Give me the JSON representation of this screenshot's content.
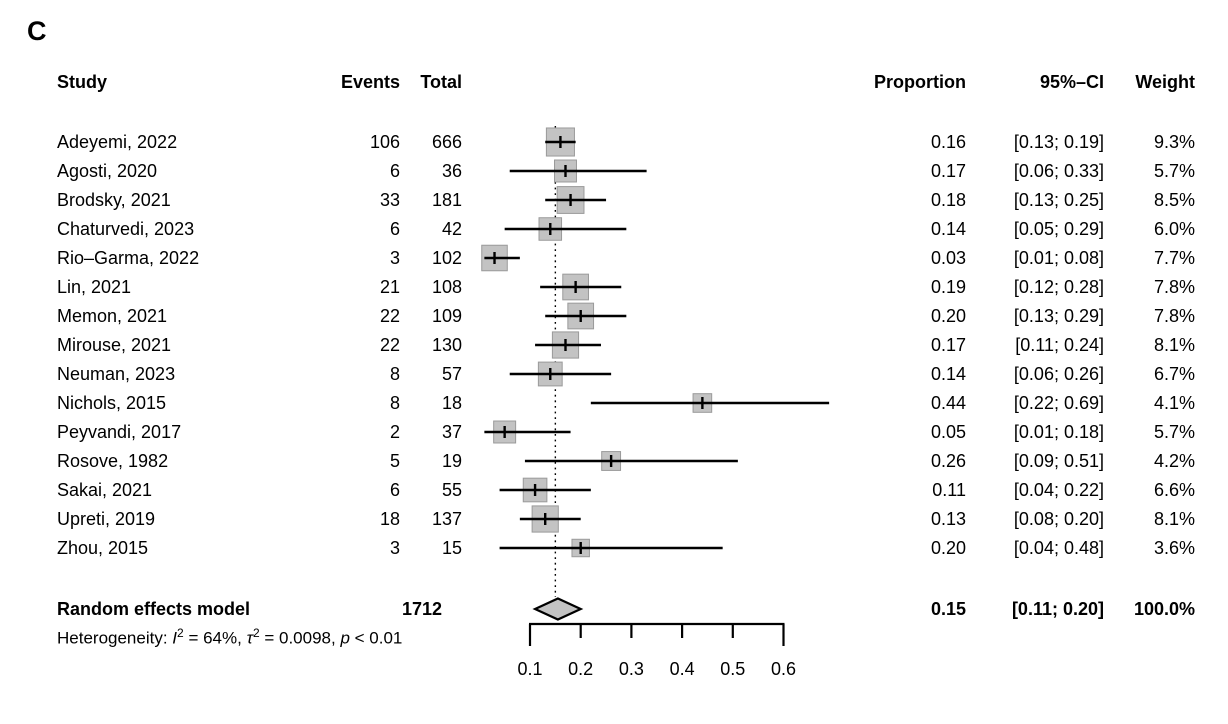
{
  "chart_data": {
    "type": "forest",
    "panel_label": "C",
    "headers": {
      "study": "Study",
      "events": "Events",
      "total": "Total",
      "proportion": "Proportion",
      "ci": "95%–CI",
      "weight": "Weight"
    },
    "rows": [
      {
        "study": "Adeyemi, 2022",
        "events": "106",
        "total": "666",
        "proportion": "0.16",
        "ci": "[0.13; 0.19]",
        "weight": "9.3%",
        "prop": 0.16,
        "lo": 0.13,
        "hi": 0.19,
        "w": 9.3
      },
      {
        "study": "Agosti, 2020",
        "events": "6",
        "total": "36",
        "proportion": "0.17",
        "ci": "[0.06; 0.33]",
        "weight": "5.7%",
        "prop": 0.17,
        "lo": 0.06,
        "hi": 0.33,
        "w": 5.7
      },
      {
        "study": "Brodsky, 2021",
        "events": "33",
        "total": "181",
        "proportion": "0.18",
        "ci": "[0.13; 0.25]",
        "weight": "8.5%",
        "prop": 0.18,
        "lo": 0.13,
        "hi": 0.25,
        "w": 8.5
      },
      {
        "study": "Chaturvedi, 2023",
        "events": "6",
        "total": "42",
        "proportion": "0.14",
        "ci": "[0.05; 0.29]",
        "weight": "6.0%",
        "prop": 0.14,
        "lo": 0.05,
        "hi": 0.29,
        "w": 6.0
      },
      {
        "study": "Rio–Garma, 2022",
        "events": "3",
        "total": "102",
        "proportion": "0.03",
        "ci": "[0.01; 0.08]",
        "weight": "7.7%",
        "prop": 0.03,
        "lo": 0.01,
        "hi": 0.08,
        "w": 7.7
      },
      {
        "study": "Lin, 2021",
        "events": "21",
        "total": "108",
        "proportion": "0.19",
        "ci": "[0.12; 0.28]",
        "weight": "7.8%",
        "prop": 0.19,
        "lo": 0.12,
        "hi": 0.28,
        "w": 7.8
      },
      {
        "study": "Memon, 2021",
        "events": "22",
        "total": "109",
        "proportion": "0.20",
        "ci": "[0.13; 0.29]",
        "weight": "7.8%",
        "prop": 0.2,
        "lo": 0.13,
        "hi": 0.29,
        "w": 7.8
      },
      {
        "study": "Mirouse, 2021",
        "events": "22",
        "total": "130",
        "proportion": "0.17",
        "ci": "[0.11; 0.24]",
        "weight": "8.1%",
        "prop": 0.17,
        "lo": 0.11,
        "hi": 0.24,
        "w": 8.1
      },
      {
        "study": "Neuman, 2023",
        "events": "8",
        "total": "57",
        "proportion": "0.14",
        "ci": "[0.06; 0.26]",
        "weight": "6.7%",
        "prop": 0.14,
        "lo": 0.06,
        "hi": 0.26,
        "w": 6.7
      },
      {
        "study": "Nichols, 2015",
        "events": "8",
        "total": "18",
        "proportion": "0.44",
        "ci": "[0.22; 0.69]",
        "weight": "4.1%",
        "prop": 0.44,
        "lo": 0.22,
        "hi": 0.69,
        "w": 4.1
      },
      {
        "study": "Peyvandi, 2017",
        "events": "2",
        "total": "37",
        "proportion": "0.05",
        "ci": "[0.01; 0.18]",
        "weight": "5.7%",
        "prop": 0.05,
        "lo": 0.01,
        "hi": 0.18,
        "w": 5.7
      },
      {
        "study": "Rosove, 1982",
        "events": "5",
        "total": "19",
        "proportion": "0.26",
        "ci": "[0.09; 0.51]",
        "weight": "4.2%",
        "prop": 0.26,
        "lo": 0.09,
        "hi": 0.51,
        "w": 4.2
      },
      {
        "study": "Sakai, 2021",
        "events": "6",
        "total": "55",
        "proportion": "0.11",
        "ci": "[0.04; 0.22]",
        "weight": "6.6%",
        "prop": 0.11,
        "lo": 0.04,
        "hi": 0.22,
        "w": 6.6
      },
      {
        "study": "Upreti, 2019",
        "events": "18",
        "total": "137",
        "proportion": "0.13",
        "ci": "[0.08; 0.20]",
        "weight": "8.1%",
        "prop": 0.13,
        "lo": 0.08,
        "hi": 0.2,
        "w": 8.1
      },
      {
        "study": "Zhou, 2015",
        "events": "3",
        "total": "15",
        "proportion": "0.20",
        "ci": "[0.04; 0.48]",
        "weight": "3.6%",
        "prop": 0.2,
        "lo": 0.04,
        "hi": 0.48,
        "w": 3.6
      }
    ],
    "summary": {
      "label": "Random effects model",
      "total": "1712",
      "proportion": "0.15",
      "ci": "[0.11; 0.20]",
      "weight": "100.0%",
      "prop": 0.15,
      "lo": 0.11,
      "hi": 0.2
    },
    "heterogeneity": {
      "prefix": "Heterogeneity: ",
      "i_sym": "I",
      "i_sup": "2",
      "i_eq": " = 64%, ",
      "tau_sym": "τ",
      "tau_sup": "2",
      "tau_eq": " = 0.0098, ",
      "p_sym": "p",
      "p_eq": " < 0.01"
    },
    "axis": {
      "ticks": [
        "0.1",
        "0.2",
        "0.3",
        "0.4",
        "0.5",
        "0.6"
      ],
      "xlim": [
        0.1,
        0.6
      ],
      "reference_line": 0.15
    },
    "colors": {
      "square_fill": "#c3c3c3",
      "square_border": "#9a9a9a",
      "diamond_fill": "#c3c3c3",
      "line": "#000000"
    }
  }
}
